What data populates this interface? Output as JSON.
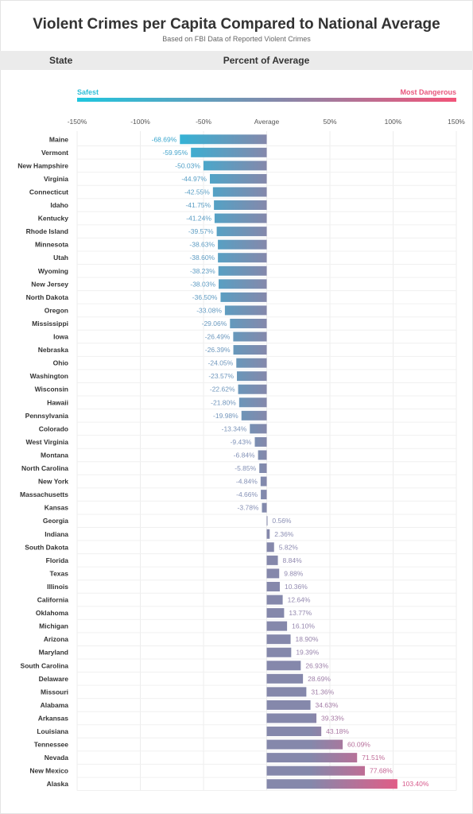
{
  "title": "Violent Crimes per Capita Compared to National Average",
  "subtitle": "Based on FBI Data of Reported Violent Crimes",
  "header": {
    "state": "State",
    "percent": "Percent of Average"
  },
  "legend": {
    "safest": "Safest",
    "most_dangerous": "Most Dangerous"
  },
  "colors": {
    "safe": "#33b3d6",
    "neutral": "#8588ab",
    "danger": "#e35c86"
  },
  "chart_data": {
    "type": "bar",
    "orientation": "horizontal",
    "xlim": [
      -150,
      150
    ],
    "ticks": [
      -150,
      -100,
      -50,
      0,
      50,
      100,
      150
    ],
    "tick_labels": [
      "-150%",
      "-100%",
      "-50%",
      "Average",
      "50%",
      "100%",
      "150%"
    ],
    "categories": [
      "Maine",
      "Vermont",
      "New Hampshire",
      "Virginia",
      "Connecticut",
      "Idaho",
      "Kentucky",
      "Rhode Island",
      "Minnesota",
      "Utah",
      "Wyoming",
      "New Jersey",
      "North Dakota",
      "Oregon",
      "Mississippi",
      "Iowa",
      "Nebraska",
      "Ohio",
      "Washington",
      "Wisconsin",
      "Hawaii",
      "Pennsylvania",
      "Colorado",
      "West Virginia",
      "Montana",
      "North Carolina",
      "New York",
      "Massachusetts",
      "Kansas",
      "Georgia",
      "Indiana",
      "South Dakota",
      "Florida",
      "Texas",
      "Illinois",
      "California",
      "Oklahoma",
      "Michigan",
      "Arizona",
      "Maryland",
      "South Carolina",
      "Delaware",
      "Missouri",
      "Alabama",
      "Arkansas",
      "Louisiana",
      "Tennessee",
      "Nevada",
      "New Mexico",
      "Alaska"
    ],
    "values": [
      -68.69,
      -59.95,
      -50.03,
      -44.97,
      -42.55,
      -41.75,
      -41.24,
      -39.57,
      -38.63,
      -38.6,
      -38.23,
      -38.03,
      -36.5,
      -33.08,
      -29.06,
      -26.49,
      -26.39,
      -24.05,
      -23.57,
      -22.62,
      -21.8,
      -19.98,
      -13.34,
      -9.43,
      -6.84,
      -5.85,
      -4.84,
      -4.66,
      -3.78,
      0.56,
      2.36,
      5.82,
      8.84,
      9.88,
      10.36,
      12.64,
      13.77,
      16.1,
      18.9,
      19.39,
      26.93,
      28.69,
      31.36,
      34.63,
      39.33,
      43.18,
      60.09,
      71.51,
      77.68,
      103.4
    ],
    "value_labels": [
      "-68.69%",
      "-59.95%",
      "-50.03%",
      "-44.97%",
      "-42.55%",
      "-41.75%",
      "-41.24%",
      "-39.57%",
      "-38.63%",
      "-38.60%",
      "-38.23%",
      "-38.03%",
      "-36.50%",
      "-33.08%",
      "-29.06%",
      "-26.49%",
      "-26.39%",
      "-24.05%",
      "-23.57%",
      "-22.62%",
      "-21.80%",
      "-19.98%",
      "-13.34%",
      "-9.43%",
      "-6.84%",
      "-5.85%",
      "-4.84%",
      "-4.66%",
      "-3.78%",
      "0.56%",
      "2.36%",
      "5.82%",
      "8.84%",
      "9.88%",
      "10.36%",
      "12.64%",
      "13.77%",
      "16.10%",
      "18.90%",
      "19.39%",
      "26.93%",
      "28.69%",
      "31.36%",
      "34.63%",
      "39.33%",
      "43.18%",
      "60.09%",
      "71.51%",
      "77.68%",
      "103.40%"
    ],
    "xlabel": "Percent of Average",
    "ylabel": "State",
    "grid": true
  }
}
